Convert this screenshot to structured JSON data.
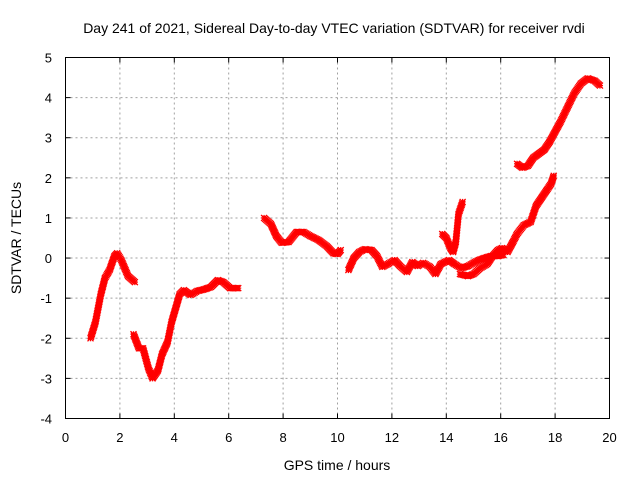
{
  "chart_data": {
    "type": "scatter",
    "title": "Day 241 of 2021, Sidereal Day-to-day VTEC variation (SDTVAR) for receiver rvdi",
    "xlabel": "GPS time / hours",
    "ylabel": "SDTVAR / TECUs",
    "xlim": [
      0,
      20
    ],
    "ylim": [
      -4,
      5
    ],
    "xticks": [
      "0",
      "2",
      "4",
      "6",
      "8",
      "10",
      "12",
      "14",
      "16",
      "18",
      "20"
    ],
    "yticks": [
      "-4",
      "-3",
      "-2",
      "-1",
      "0",
      "1",
      "2",
      "3",
      "4",
      "5"
    ],
    "grid": true,
    "marker": "plus-cross",
    "series": [
      {
        "name": "rvdi",
        "color": "#ff0000",
        "segments": [
          [
            [
              0.92,
              -2.0
            ],
            [
              1.1,
              -1.6
            ],
            [
              1.3,
              -0.9
            ],
            [
              1.45,
              -0.5
            ],
            [
              1.62,
              -0.3
            ],
            [
              1.8,
              0.05
            ],
            [
              1.9,
              0.12
            ],
            [
              2.05,
              -0.05
            ],
            [
              2.3,
              -0.45
            ],
            [
              2.55,
              -0.6
            ]
          ],
          [
            [
              2.5,
              -1.9
            ],
            [
              2.7,
              -2.25
            ],
            [
              2.85,
              -2.25
            ],
            [
              3.05,
              -2.75
            ],
            [
              3.2,
              -3.0
            ],
            [
              3.4,
              -2.8
            ],
            [
              3.55,
              -2.4
            ],
            [
              3.75,
              -2.1
            ],
            [
              3.9,
              -1.6
            ],
            [
              4.05,
              -1.25
            ],
            [
              4.2,
              -0.9
            ],
            [
              4.35,
              -0.8
            ],
            [
              4.6,
              -0.92
            ],
            [
              4.85,
              -0.82
            ],
            [
              5.1,
              -0.78
            ],
            [
              5.35,
              -0.72
            ],
            [
              5.6,
              -0.55
            ],
            [
              5.8,
              -0.6
            ],
            [
              6.05,
              -0.75
            ],
            [
              6.35,
              -0.75
            ]
          ],
          [
            [
              7.3,
              1.0
            ],
            [
              7.55,
              0.85
            ],
            [
              7.75,
              0.55
            ],
            [
              7.95,
              0.38
            ],
            [
              8.2,
              0.4
            ],
            [
              8.5,
              0.65
            ],
            [
              8.75,
              0.65
            ],
            [
              9.0,
              0.55
            ],
            [
              9.3,
              0.45
            ],
            [
              9.6,
              0.3
            ],
            [
              9.85,
              0.12
            ],
            [
              10.0,
              0.1
            ],
            [
              10.12,
              0.2
            ]
          ],
          [
            [
              10.4,
              -0.3
            ],
            [
              10.6,
              0.0
            ],
            [
              10.8,
              0.15
            ],
            [
              11.0,
              0.22
            ],
            [
              11.25,
              0.2
            ],
            [
              11.45,
              0.05
            ],
            [
              11.65,
              -0.22
            ],
            [
              11.85,
              -0.15
            ],
            [
              12.1,
              -0.05
            ],
            [
              12.3,
              -0.2
            ],
            [
              12.55,
              -0.35
            ],
            [
              12.75,
              -0.1
            ],
            [
              12.95,
              -0.2
            ],
            [
              13.15,
              -0.12
            ],
            [
              13.4,
              -0.22
            ],
            [
              13.6,
              -0.4
            ],
            [
              13.8,
              -0.15
            ],
            [
              13.95,
              -0.1
            ],
            [
              14.1,
              -0.05
            ],
            [
              14.3,
              -0.15
            ],
            [
              14.55,
              -0.25
            ],
            [
              14.8,
              -0.2
            ],
            [
              15.0,
              -0.12
            ],
            [
              15.2,
              -0.05
            ],
            [
              15.4,
              0.0
            ],
            [
              15.65,
              0.05
            ],
            [
              15.9,
              0.05
            ],
            [
              16.1,
              0.08
            ]
          ],
          [
            [
              13.85,
              0.6
            ],
            [
              14.0,
              0.5
            ],
            [
              14.15,
              0.25
            ],
            [
              14.25,
              0.15
            ],
            [
              14.35,
              0.4
            ],
            [
              14.45,
              1.1
            ],
            [
              14.6,
              1.4
            ]
          ],
          [
            [
              14.5,
              -0.4
            ],
            [
              14.8,
              -0.45
            ],
            [
              15.0,
              -0.4
            ],
            [
              15.25,
              -0.25
            ],
            [
              15.5,
              -0.15
            ],
            [
              15.7,
              0.05
            ],
            [
              15.9,
              0.2
            ],
            [
              16.05,
              0.25
            ],
            [
              16.25,
              0.15
            ],
            [
              16.45,
              0.4
            ],
            [
              16.6,
              0.6
            ],
            [
              16.85,
              0.82
            ],
            [
              17.1,
              0.9
            ],
            [
              17.3,
              1.3
            ],
            [
              17.5,
              1.5
            ],
            [
              17.7,
              1.7
            ],
            [
              17.85,
              1.85
            ],
            [
              17.95,
              2.05
            ]
          ],
          [
            [
              16.6,
              2.35
            ],
            [
              16.8,
              2.25
            ],
            [
              17.0,
              2.3
            ],
            [
              17.2,
              2.5
            ],
            [
              17.4,
              2.6
            ],
            [
              17.6,
              2.7
            ],
            [
              17.8,
              2.9
            ],
            [
              18.0,
              3.15
            ],
            [
              18.2,
              3.4
            ],
            [
              18.45,
              3.75
            ],
            [
              18.7,
              4.1
            ],
            [
              18.95,
              4.35
            ],
            [
              19.2,
              4.48
            ],
            [
              19.45,
              4.42
            ],
            [
              19.65,
              4.3
            ]
          ]
        ]
      }
    ]
  }
}
